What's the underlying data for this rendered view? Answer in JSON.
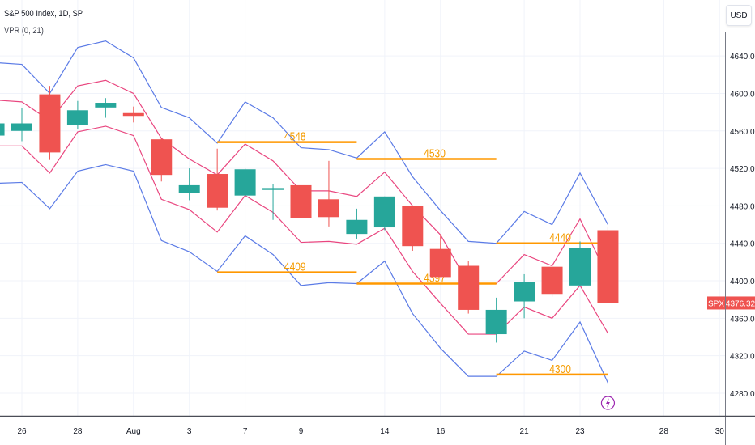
{
  "header": {
    "symbol_title": "S&P 500 Index, 1D, SP",
    "study_title": "VPR (0, 21)",
    "currency_button": "USD"
  },
  "price_tag": {
    "symbol": "SPX",
    "value": "4376.32",
    "price": 4376.32,
    "color": "#ef5350"
  },
  "event_icon": {
    "icon": "lightning-icon",
    "color": "#9c27b0",
    "date": "Aug 24"
  },
  "colors": {
    "up": "#26a69a",
    "down": "#ef5350",
    "outer_band": "#5b7be6",
    "inner_band": "#e9467f",
    "level": "#ff9800",
    "level_text": "#f59c00",
    "grid": "#f0f3fa"
  },
  "chart_data": {
    "type": "candlestick",
    "title": "S&P 500 Index, 1D, SP",
    "indicator": "VPR (0, 21)",
    "ylim": [
      4255,
      4675
    ],
    "y_ticks": [
      "4640.00",
      "4600.00",
      "4560.00",
      "4520.00",
      "4480.00",
      "4440.00",
      "4400.00",
      "4360.00",
      "4320.00",
      "4280.00"
    ],
    "y_tick_values": [
      4640,
      4600,
      4560,
      4520,
      4480,
      4440,
      4400,
      4360,
      4320,
      4280
    ],
    "x_ticks": [
      {
        "label": "26",
        "date": "Jul 26"
      },
      {
        "label": "28",
        "date": "Jul 28"
      },
      {
        "label": "Aug",
        "date": "Aug 1"
      },
      {
        "label": "3",
        "date": "Aug 3"
      },
      {
        "label": "7",
        "date": "Aug 7"
      },
      {
        "label": "9",
        "date": "Aug 9"
      },
      {
        "label": "14",
        "date": "Aug 14"
      },
      {
        "label": "16",
        "date": "Aug 16"
      },
      {
        "label": "21",
        "date": "Aug 21"
      },
      {
        "label": "23",
        "date": "Aug 23"
      },
      {
        "label": "28",
        "date": "Aug 28"
      },
      {
        "label": "30",
        "date": "Aug 30"
      }
    ],
    "grid": true,
    "dates": [
      "Jul 25",
      "Jul 26",
      "Jul 27",
      "Jul 28",
      "Jul 31",
      "Aug 1",
      "Aug 2",
      "Aug 3",
      "Aug 4",
      "Aug 7",
      "Aug 8",
      "Aug 9",
      "Aug 10",
      "Aug 11",
      "Aug 14",
      "Aug 15",
      "Aug 16",
      "Aug 17",
      "Aug 18",
      "Aug 21",
      "Aug 22",
      "Aug 23",
      "Aug 24",
      "Aug 25",
      "Aug 28",
      "Aug 29",
      "Aug 30"
    ],
    "candles": [
      {
        "date": "Jul 25",
        "o": 4555,
        "h": 4572,
        "l": 4552,
        "c": 4568
      },
      {
        "date": "Jul 26",
        "o": 4560,
        "h": 4584,
        "l": 4549,
        "c": 4568
      },
      {
        "date": "Jul 27",
        "o": 4599,
        "h": 4608,
        "l": 4529,
        "c": 4537
      },
      {
        "date": "Jul 28",
        "o": 4566,
        "h": 4592,
        "l": 4562,
        "c": 4582
      },
      {
        "date": "Jul 31",
        "o": 4585,
        "h": 4595,
        "l": 4574,
        "c": 4590
      },
      {
        "date": "Aug 1",
        "o": 4579,
        "h": 4586,
        "l": 4569,
        "c": 4576
      },
      {
        "date": "Aug 2",
        "o": 4551,
        "h": 4552,
        "l": 4506,
        "c": 4513
      },
      {
        "date": "Aug 3",
        "o": 4494,
        "h": 4520,
        "l": 4486,
        "c": 4502
      },
      {
        "date": "Aug 4",
        "o": 4514,
        "h": 4541,
        "l": 4475,
        "c": 4478
      },
      {
        "date": "Aug 7",
        "o": 4491,
        "h": 4520,
        "l": 4490,
        "c": 4519
      },
      {
        "date": "Aug 8",
        "o": 4497,
        "h": 4503,
        "l": 4465,
        "c": 4499
      },
      {
        "date": "Aug 9",
        "o": 4502,
        "h": 4502,
        "l": 4462,
        "c": 4467
      },
      {
        "date": "Aug 10",
        "o": 4487,
        "h": 4528,
        "l": 4458,
        "c": 4468
      },
      {
        "date": "Aug 11",
        "o": 4450,
        "h": 4477,
        "l": 4445,
        "c": 4465
      },
      {
        "date": "Aug 14",
        "o": 4457,
        "h": 4490,
        "l": 4454,
        "c": 4490
      },
      {
        "date": "Aug 15",
        "o": 4480,
        "h": 4480,
        "l": 4432,
        "c": 4437
      },
      {
        "date": "Aug 16",
        "o": 4434,
        "h": 4449,
        "l": 4404,
        "c": 4404
      },
      {
        "date": "Aug 17",
        "o": 4416,
        "h": 4421,
        "l": 4365,
        "c": 4369
      },
      {
        "date": "Aug 18",
        "o": 4343,
        "h": 4382,
        "l": 4334,
        "c": 4369
      },
      {
        "date": "Aug 21",
        "o": 4378,
        "h": 4407,
        "l": 4360,
        "c": 4399
      },
      {
        "date": "Aug 22",
        "o": 4415,
        "h": 4415,
        "l": 4383,
        "c": 4386
      },
      {
        "date": "Aug 23",
        "o": 4395,
        "h": 4442,
        "l": 4395,
        "c": 4435
      },
      {
        "date": "Aug 24",
        "o": 4454,
        "h": 4458,
        "l": 4376,
        "c": 4376.32
      }
    ],
    "bands": {
      "outer_upper": [
        4633,
        4631,
        4600,
        4649,
        4656,
        4638,
        4585,
        4574,
        4547,
        4591,
        4574,
        4542,
        4540,
        4531,
        4559,
        4511,
        4475,
        4442,
        4440,
        4474,
        4460,
        4515,
        4460
      ],
      "inner_upper": [
        4593,
        4591,
        4571,
        4608,
        4614,
        4600,
        4552,
        4530,
        4513,
        4546,
        4528,
        4496,
        4496,
        4490,
        4516,
        4480,
        4449,
        4397,
        4397,
        4428,
        4416,
        4466,
        4404
      ],
      "inner_lower": [
        4544,
        4544,
        4515,
        4559,
        4565,
        4555,
        4487,
        4476,
        4452,
        4491,
        4473,
        4441,
        4442,
        4439,
        4456,
        4410,
        4376,
        4343,
        4343,
        4372,
        4360,
        4395,
        4344
      ],
      "outer_lower": [
        4504,
        4505,
        4477,
        4517,
        4524,
        4517,
        4443,
        4431,
        4410,
        4448,
        4428,
        4395,
        4398,
        4397,
        4421,
        4365,
        4328,
        4298,
        4298,
        4325,
        4315,
        4356,
        4291
      ]
    },
    "levels": [
      {
        "label": "4548",
        "value": 4548,
        "from": "Aug 4",
        "to": "Aug 11"
      },
      {
        "label": "4409",
        "value": 4409,
        "from": "Aug 4",
        "to": "Aug 11"
      },
      {
        "label": "4530",
        "value": 4530,
        "from": "Aug 11",
        "to": "Aug 18"
      },
      {
        "label": "4397",
        "value": 4397,
        "from": "Aug 11",
        "to": "Aug 18"
      },
      {
        "label": "4440",
        "value": 4440,
        "from": "Aug 18",
        "to": "Aug 24"
      },
      {
        "label": "4300",
        "value": 4300,
        "from": "Aug 18",
        "to": "Aug 24"
      }
    ]
  }
}
